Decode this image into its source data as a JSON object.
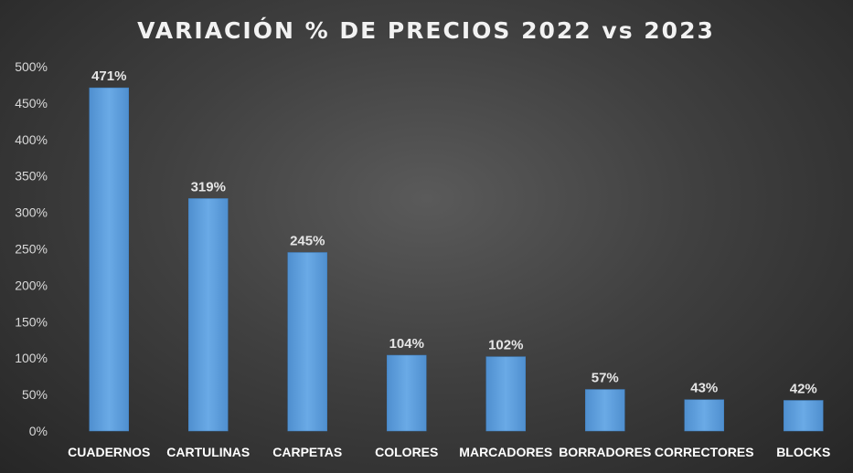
{
  "chart_data": {
    "type": "bar",
    "title": "VARIACIÓN % DE PRECIOS 2022 vs 2023",
    "categories": [
      "CUADERNOS",
      "CARTULINAS",
      "CARPETAS",
      "COLORES",
      "MARCADORES",
      "BORRADORES",
      "CORRECTORES",
      "BLOCKS"
    ],
    "values": [
      471,
      319,
      245,
      104,
      102,
      57,
      43,
      42
    ],
    "data_labels": [
      "471%",
      "319%",
      "245%",
      "104%",
      "102%",
      "57%",
      "43%",
      "42%"
    ],
    "ylim": [
      0,
      500
    ],
    "yticks": [
      0,
      50,
      100,
      150,
      200,
      250,
      300,
      350,
      400,
      450,
      500
    ],
    "ytick_labels": [
      "0%",
      "50%",
      "100%",
      "150%",
      "200%",
      "250%",
      "300%",
      "350%",
      "400%",
      "450%",
      "500%"
    ],
    "xlabel": "",
    "ylabel": "",
    "grid": false,
    "legend": "none",
    "bar_color": "#5b9bd5",
    "background_color": "#404040"
  }
}
